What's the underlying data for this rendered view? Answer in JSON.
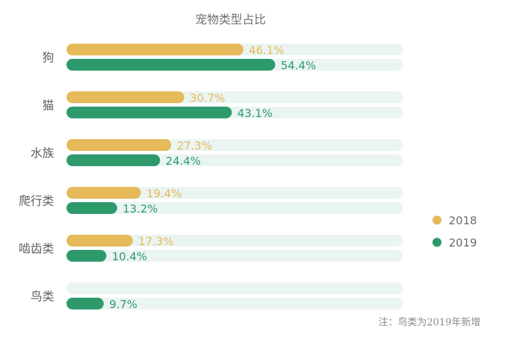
{
  "chart_data": {
    "type": "bar",
    "orientation": "horizontal",
    "title": "宠物类型占比",
    "categories": [
      "狗",
      "猫",
      "水族",
      "爬行类",
      "啮齿类",
      "鸟类"
    ],
    "series": [
      {
        "name": "2018",
        "color": "#e6b95a",
        "values": [
          46.1,
          30.7,
          27.3,
          19.4,
          17.3,
          null
        ],
        "labels": [
          "46.1%",
          "30.7%",
          "27.3%",
          "19.4%",
          "17.3%",
          ""
        ]
      },
      {
        "name": "2019",
        "color": "#2e9a6c",
        "values": [
          54.4,
          43.1,
          24.4,
          13.2,
          10.4,
          9.7
        ],
        "labels": [
          "54.4%",
          "43.1%",
          "24.4%",
          "13.2%",
          "10.4%",
          "9.7%"
        ]
      }
    ],
    "xlim": [
      0,
      100
    ],
    "legend": "right",
    "grid": false,
    "track_color": "#eaf4f1",
    "note": "注：鸟类为2019年新增"
  }
}
